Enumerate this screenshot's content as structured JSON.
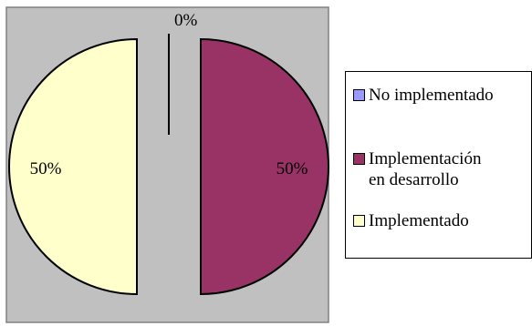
{
  "chart_data": {
    "type": "pie",
    "categories": [
      "No implementado",
      "Implementación en desarrollo",
      "Implementado"
    ],
    "values": [
      0,
      50,
      50
    ],
    "data_labels": [
      "0%",
      "50%",
      "50%"
    ],
    "colors": [
      "#9999ff",
      "#993366",
      "#ffffcc"
    ],
    "plot_background": "#c0c0c0",
    "exploded": true,
    "legend_position": "right",
    "legend": [
      {
        "label": "No implementado",
        "color": "#9999ff"
      },
      {
        "label": "Implementación\nen desarrollo",
        "color": "#993366"
      },
      {
        "label": "Implementado",
        "color": "#ffffcc"
      }
    ]
  }
}
